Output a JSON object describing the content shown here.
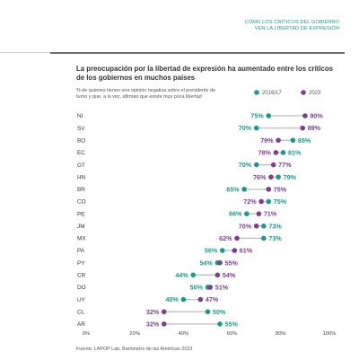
{
  "header": {
    "line1": "CÓMO LOS CRÍTICOS DEL GOBIERNO",
    "line2": "VEN LA LIBERTAD DE EXPRESIÓN"
  },
  "colors": {
    "teal": "#1a9a8e",
    "purple": "#7b3f8f",
    "rule": "#6e6e6e"
  },
  "source": "Fuente: LAPOP Lab, Barómetro de las Américas 2023",
  "chart_data": {
    "type": "scatter",
    "title": "La preocupación por la libertad de expresión ha aumentado entre los críticos de los gobiernos en muchos países",
    "subtitle": "% de quienes tienen una opinión negativa sobre el presidente de turno y que, a la vez, afirman que existe muy poca libertad",
    "xlim": [
      0,
      100
    ],
    "x_ticks": [
      "0%",
      "20%",
      "40%",
      "60%",
      "80%",
      "100%"
    ],
    "grid": false,
    "legend_position": "top-right",
    "categories": [
      "NI",
      "SV",
      "BO",
      "EC",
      "GT",
      "HN",
      "BR",
      "CO",
      "PE",
      "JM",
      "MX",
      "PA",
      "PY",
      "CR",
      "DO",
      "UY",
      "CL",
      "AR"
    ],
    "series": [
      {
        "name": "2016/17",
        "color": "#1a9a8e",
        "values": [
          75,
          70,
          85,
          81,
          70,
          79,
          65,
          75,
          66,
          73,
          73,
          56,
          54,
          44,
          50,
          40,
          50,
          55
        ]
      },
      {
        "name": "2023",
        "color": "#7b3f8f",
        "values": [
          90,
          89,
          79,
          78,
          77,
          76,
          75,
          72,
          71,
          70,
          62,
          61,
          55,
          54,
          51,
          47,
          32,
          32
        ]
      }
    ]
  }
}
